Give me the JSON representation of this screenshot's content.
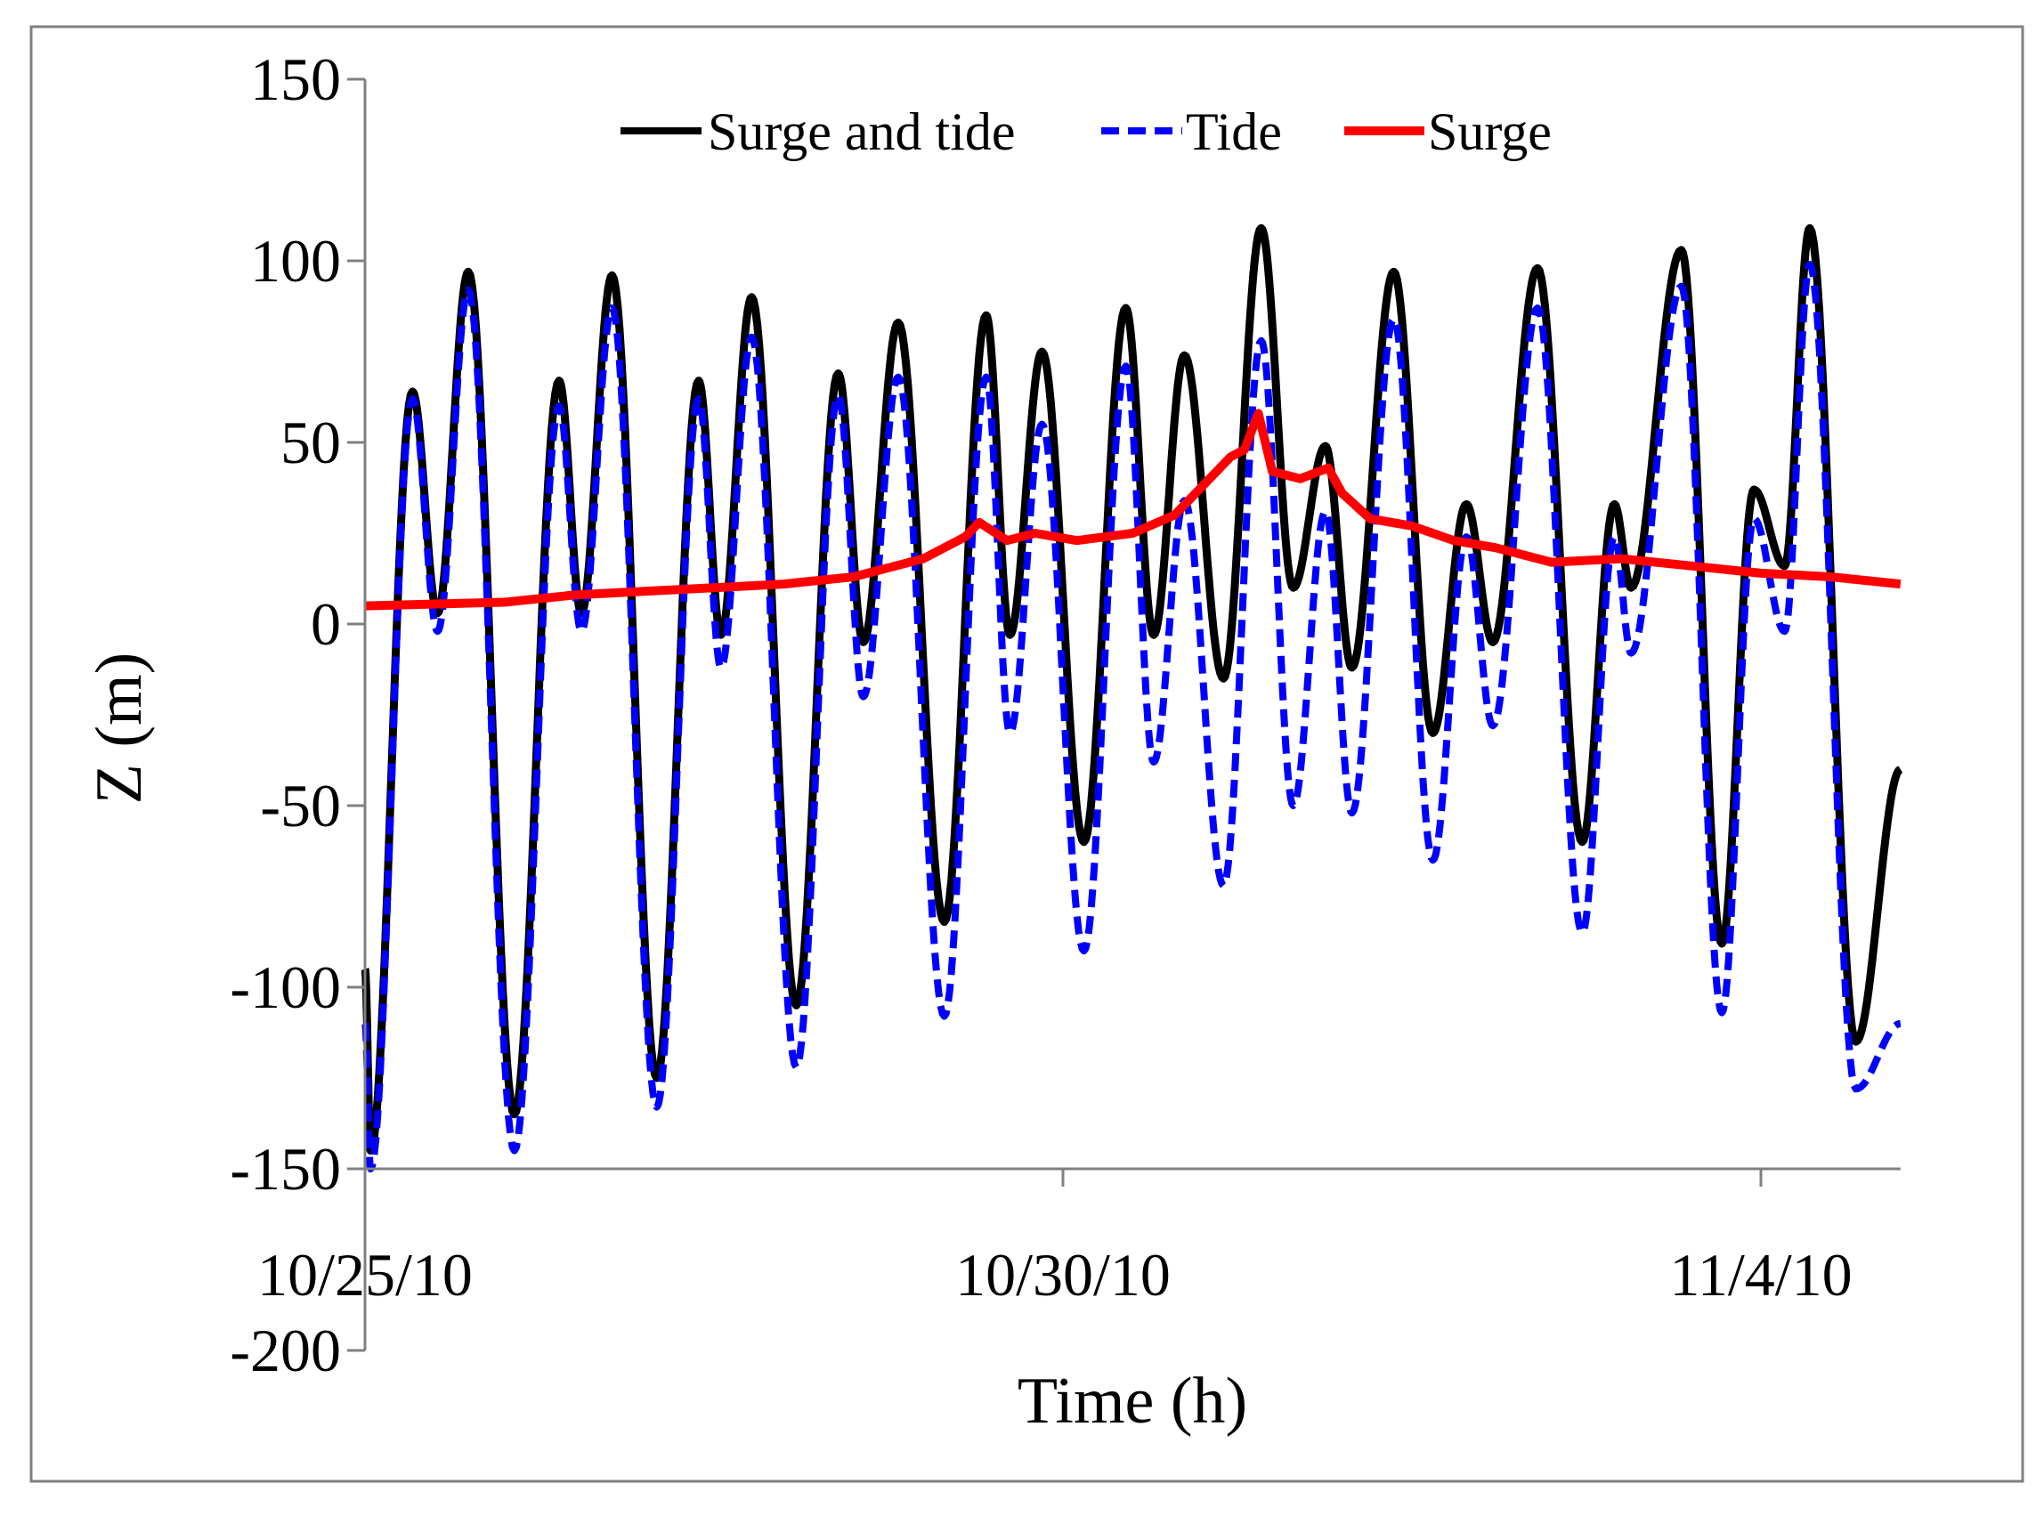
{
  "chart_data": {
    "type": "line",
    "title": "",
    "xlabel": "Time (h)",
    "ylabel": "Z (m)",
    "ylim": [
      -200,
      150
    ],
    "y_ticks": [
      150,
      100,
      50,
      0,
      -50,
      -100,
      -150,
      -200
    ],
    "y_tick_labels": [
      "150",
      "100",
      "50",
      "0",
      "-50",
      "-100",
      "-150",
      "-200"
    ],
    "x_range_days": [
      0,
      11
    ],
    "x_ticks": [
      {
        "day": 0,
        "label": "10/25/10"
      },
      {
        "day": 5,
        "label": "10/30/10"
      },
      {
        "day": 10,
        "label": "11/4/10"
      }
    ],
    "grid": false,
    "legend_position": "top",
    "series": [
      {
        "name": "Surge and tide",
        "color": "#000000",
        "dash": "solid",
        "extrema": [
          [
            0.0,
            -95
          ],
          [
            0.04,
            -145
          ],
          [
            0.34,
            64
          ],
          [
            0.52,
            3
          ],
          [
            0.74,
            97
          ],
          [
            1.07,
            -135
          ],
          [
            1.39,
            67
          ],
          [
            1.55,
            3
          ],
          [
            1.77,
            96
          ],
          [
            2.09,
            -125
          ],
          [
            2.39,
            67
          ],
          [
            2.55,
            -3
          ],
          [
            2.77,
            90
          ],
          [
            3.09,
            -105
          ],
          [
            3.39,
            69
          ],
          [
            3.57,
            -5
          ],
          [
            3.82,
            83
          ],
          [
            4.15,
            -82
          ],
          [
            4.45,
            85
          ],
          [
            4.62,
            -3
          ],
          [
            4.85,
            75
          ],
          [
            5.15,
            -60
          ],
          [
            5.45,
            87
          ],
          [
            5.65,
            -3
          ],
          [
            5.87,
            74
          ],
          [
            6.15,
            -15
          ],
          [
            6.42,
            109
          ],
          [
            6.65,
            10
          ],
          [
            6.88,
            49
          ],
          [
            7.07,
            -12
          ],
          [
            7.37,
            97
          ],
          [
            7.65,
            -30
          ],
          [
            7.89,
            33
          ],
          [
            8.08,
            -5
          ],
          [
            8.4,
            98
          ],
          [
            8.72,
            -60
          ],
          [
            8.95,
            33
          ],
          [
            9.07,
            10
          ],
          [
            9.43,
            103
          ],
          [
            9.72,
            -88
          ],
          [
            9.95,
            37
          ],
          [
            10.17,
            16
          ],
          [
            10.35,
            109
          ],
          [
            10.68,
            -115
          ],
          [
            11.0,
            -40
          ]
        ]
      },
      {
        "name": "Tide",
        "color": "#0000ff",
        "dash": "dashed",
        "extrema": [
          [
            0.0,
            -110
          ],
          [
            0.04,
            -150
          ],
          [
            0.34,
            62
          ],
          [
            0.52,
            -2
          ],
          [
            0.74,
            92
          ],
          [
            1.07,
            -145
          ],
          [
            1.39,
            60
          ],
          [
            1.55,
            -2
          ],
          [
            1.77,
            87
          ],
          [
            2.09,
            -133
          ],
          [
            2.39,
            62
          ],
          [
            2.55,
            -12
          ],
          [
            2.77,
            79
          ],
          [
            3.09,
            -122
          ],
          [
            3.39,
            63
          ],
          [
            3.57,
            -20
          ],
          [
            3.82,
            68
          ],
          [
            4.15,
            -108
          ],
          [
            4.45,
            68
          ],
          [
            4.62,
            -30
          ],
          [
            4.85,
            55
          ],
          [
            5.15,
            -90
          ],
          [
            5.45,
            71
          ],
          [
            5.65,
            -38
          ],
          [
            5.87,
            34
          ],
          [
            6.15,
            -72
          ],
          [
            6.42,
            78
          ],
          [
            6.65,
            -50
          ],
          [
            6.88,
            31
          ],
          [
            7.07,
            -52
          ],
          [
            7.37,
            84
          ],
          [
            7.65,
            -65
          ],
          [
            7.89,
            24
          ],
          [
            8.08,
            -28
          ],
          [
            8.4,
            87
          ],
          [
            8.72,
            -85
          ],
          [
            8.95,
            24
          ],
          [
            9.07,
            -8
          ],
          [
            9.43,
            93
          ],
          [
            9.72,
            -107
          ],
          [
            9.95,
            29
          ],
          [
            10.17,
            -2
          ],
          [
            10.35,
            99
          ],
          [
            10.68,
            -128
          ],
          [
            11.0,
            -110
          ]
        ]
      },
      {
        "name": "Surge",
        "color": "#ff0000",
        "dash": "solid",
        "points": [
          [
            0.0,
            5
          ],
          [
            1.0,
            6
          ],
          [
            1.5,
            8
          ],
          [
            2.0,
            9
          ],
          [
            2.5,
            10
          ],
          [
            3.0,
            11
          ],
          [
            3.5,
            13
          ],
          [
            4.0,
            18
          ],
          [
            4.3,
            24
          ],
          [
            4.4,
            28
          ],
          [
            4.6,
            23
          ],
          [
            4.8,
            25
          ],
          [
            5.1,
            23
          ],
          [
            5.5,
            25
          ],
          [
            5.8,
            30
          ],
          [
            6.0,
            38
          ],
          [
            6.2,
            46
          ],
          [
            6.3,
            48
          ],
          [
            6.4,
            58
          ],
          [
            6.5,
            42
          ],
          [
            6.7,
            40
          ],
          [
            6.9,
            43
          ],
          [
            7.0,
            36
          ],
          [
            7.2,
            29
          ],
          [
            7.5,
            27
          ],
          [
            7.8,
            23
          ],
          [
            8.1,
            21
          ],
          [
            8.5,
            17
          ],
          [
            9.0,
            18
          ],
          [
            9.5,
            16
          ],
          [
            10.0,
            14
          ],
          [
            10.5,
            13
          ],
          [
            11.0,
            11
          ]
        ]
      }
    ]
  }
}
